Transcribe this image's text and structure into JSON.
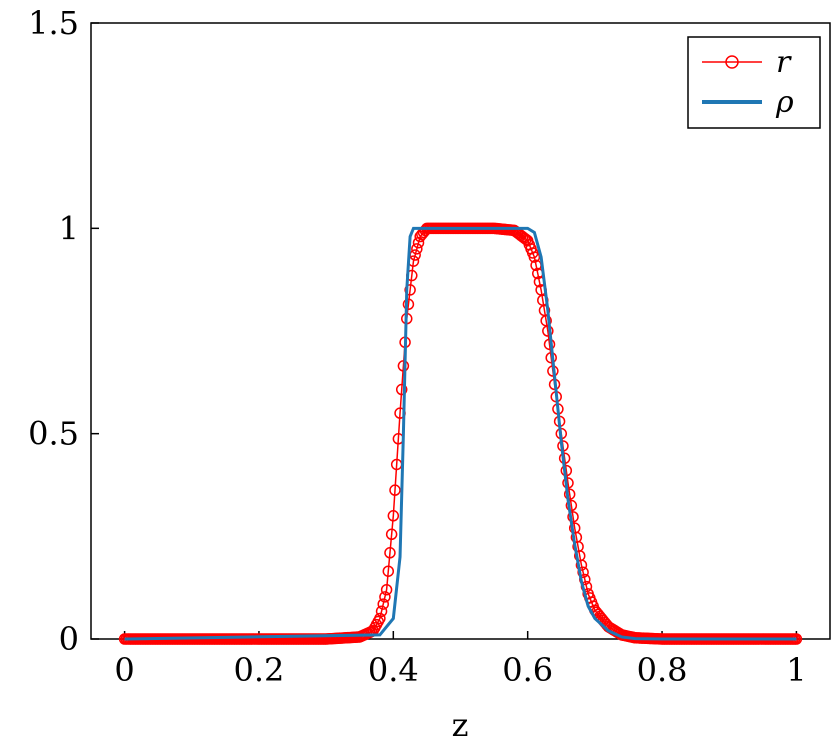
{
  "chart_data": {
    "type": "line",
    "xlabel": "z",
    "ylabel": "",
    "title": "",
    "xlim": [
      -0.05,
      1.05
    ],
    "ylim": [
      0,
      1.5
    ],
    "xticks": [
      0,
      0.2,
      0.4,
      0.6,
      0.8,
      1
    ],
    "xtick_labels": [
      "0",
      "0.2",
      "0.4",
      "0.6",
      "0.8",
      "1"
    ],
    "yticks": [
      0,
      0.5,
      1,
      1.5
    ],
    "ytick_labels": [
      "0",
      "0.5",
      "1",
      "1.5"
    ],
    "grid": false,
    "legend_position": "top-right",
    "series": [
      {
        "name": "r",
        "color": "#ff0000",
        "style": "line-with-open-circle-markers",
        "x": [
          0,
          0.3,
          0.35,
          0.37,
          0.38,
          0.39,
          0.4,
          0.41,
          0.42,
          0.43,
          0.44,
          0.45,
          0.46,
          0.5,
          0.55,
          0.58,
          0.6,
          0.61,
          0.62,
          0.63,
          0.64,
          0.65,
          0.66,
          0.67,
          0.68,
          0.69,
          0.7,
          0.72,
          0.74,
          0.76,
          0.8,
          1
        ],
        "y": [
          0,
          0,
          0.005,
          0.02,
          0.05,
          0.12,
          0.3,
          0.55,
          0.78,
          0.92,
          0.98,
          1.0,
          1.0,
          1.0,
          1.0,
          0.995,
          0.97,
          0.93,
          0.85,
          0.75,
          0.62,
          0.5,
          0.38,
          0.27,
          0.18,
          0.11,
          0.07,
          0.03,
          0.01,
          0.003,
          0,
          0
        ]
      },
      {
        "name": "ρ",
        "color": "#1f77b4",
        "style": "line",
        "x": [
          0,
          0.38,
          0.4,
          0.41,
          0.415,
          0.42,
          0.425,
          0.43,
          0.5,
          0.6,
          0.61,
          0.62,
          0.63,
          0.64,
          0.65,
          0.66,
          0.67,
          0.68,
          0.69,
          0.7,
          0.72,
          0.74,
          0.76,
          0.8,
          1
        ],
        "y": [
          0,
          0.01,
          0.05,
          0.2,
          0.5,
          0.85,
          0.98,
          1.0,
          1.0,
          1.0,
          0.99,
          0.93,
          0.8,
          0.64,
          0.48,
          0.34,
          0.23,
          0.14,
          0.08,
          0.05,
          0.02,
          0.005,
          0.001,
          0,
          0
        ]
      }
    ]
  }
}
